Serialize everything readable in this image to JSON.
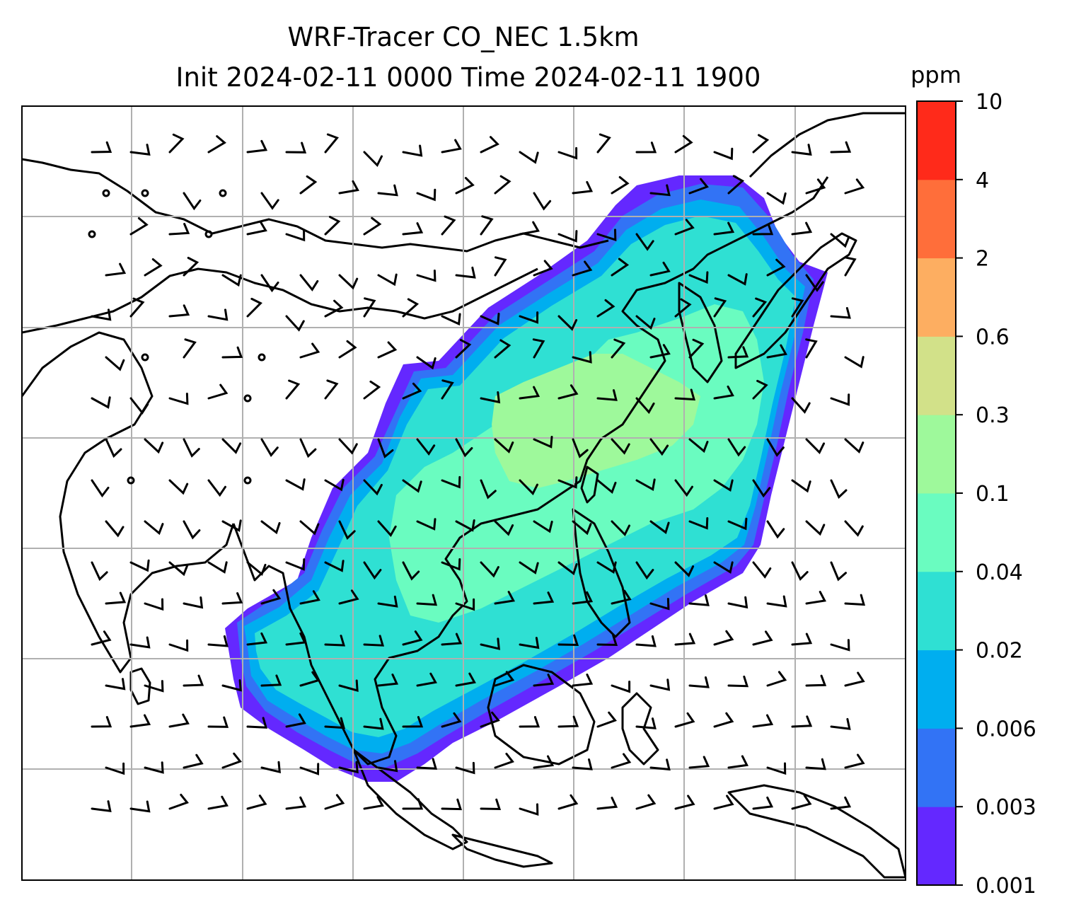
{
  "title": {
    "line1": "WRF-Tracer CO_NEC 1.5km",
    "line2": "Init 2024-02-11 0000 Time 2024-02-11 1900"
  },
  "colorbar": {
    "unit": "ppm",
    "levels": [
      "0.001",
      "0.003",
      "0.006",
      "0.02",
      "0.04",
      "0.1",
      "0.3",
      "0.6",
      "2",
      "4",
      "10"
    ],
    "colors": [
      "#6428ff",
      "#3273f5",
      "#00aeef",
      "#2fe0d3",
      "#6afcc0",
      "#9ef99b",
      "#d2e189",
      "#fdae61",
      "#ff6e3a",
      "#ff2a1a"
    ]
  },
  "map": {
    "background": "#ffffff",
    "gridlines": true,
    "coastline_color": "#000000",
    "wind_barbs": true,
    "plume_colors": [
      "#6428ff",
      "#3273f5",
      "#00aeef",
      "#2fe0d3",
      "#6afcc0",
      "#9ef99b"
    ]
  }
}
